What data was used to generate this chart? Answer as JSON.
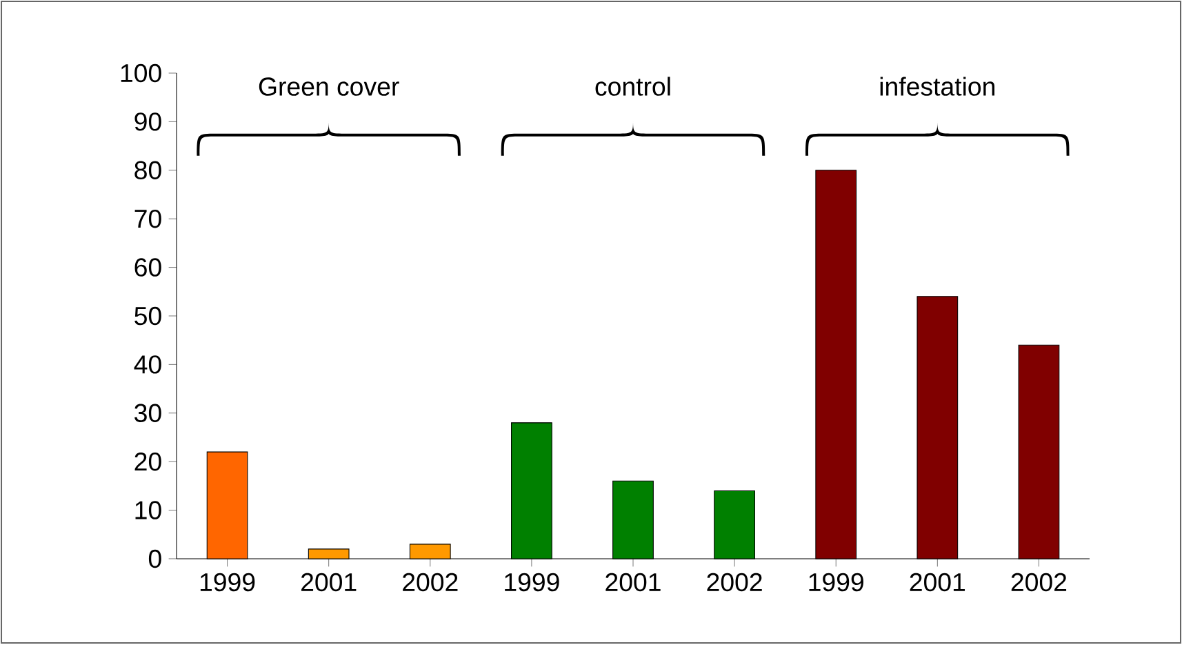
{
  "chart_data": {
    "type": "bar",
    "categories": [
      "1999",
      "2001",
      "2002",
      "1999",
      "2001",
      "2002",
      "1999",
      "2001",
      "2002"
    ],
    "values": [
      22,
      2,
      3,
      28,
      16,
      14,
      80,
      54,
      44
    ],
    "colors": [
      "#ff6600",
      "#ff9900",
      "#ff9900",
      "#008000",
      "#008000",
      "#008000",
      "#800000",
      "#800000",
      "#800000"
    ],
    "ylim": [
      0,
      100
    ],
    "yticks": [
      0,
      10,
      20,
      30,
      40,
      50,
      60,
      70,
      80,
      90,
      100
    ],
    "grid": false,
    "annotations": [
      "Green cover",
      "control",
      "infestation"
    ]
  }
}
